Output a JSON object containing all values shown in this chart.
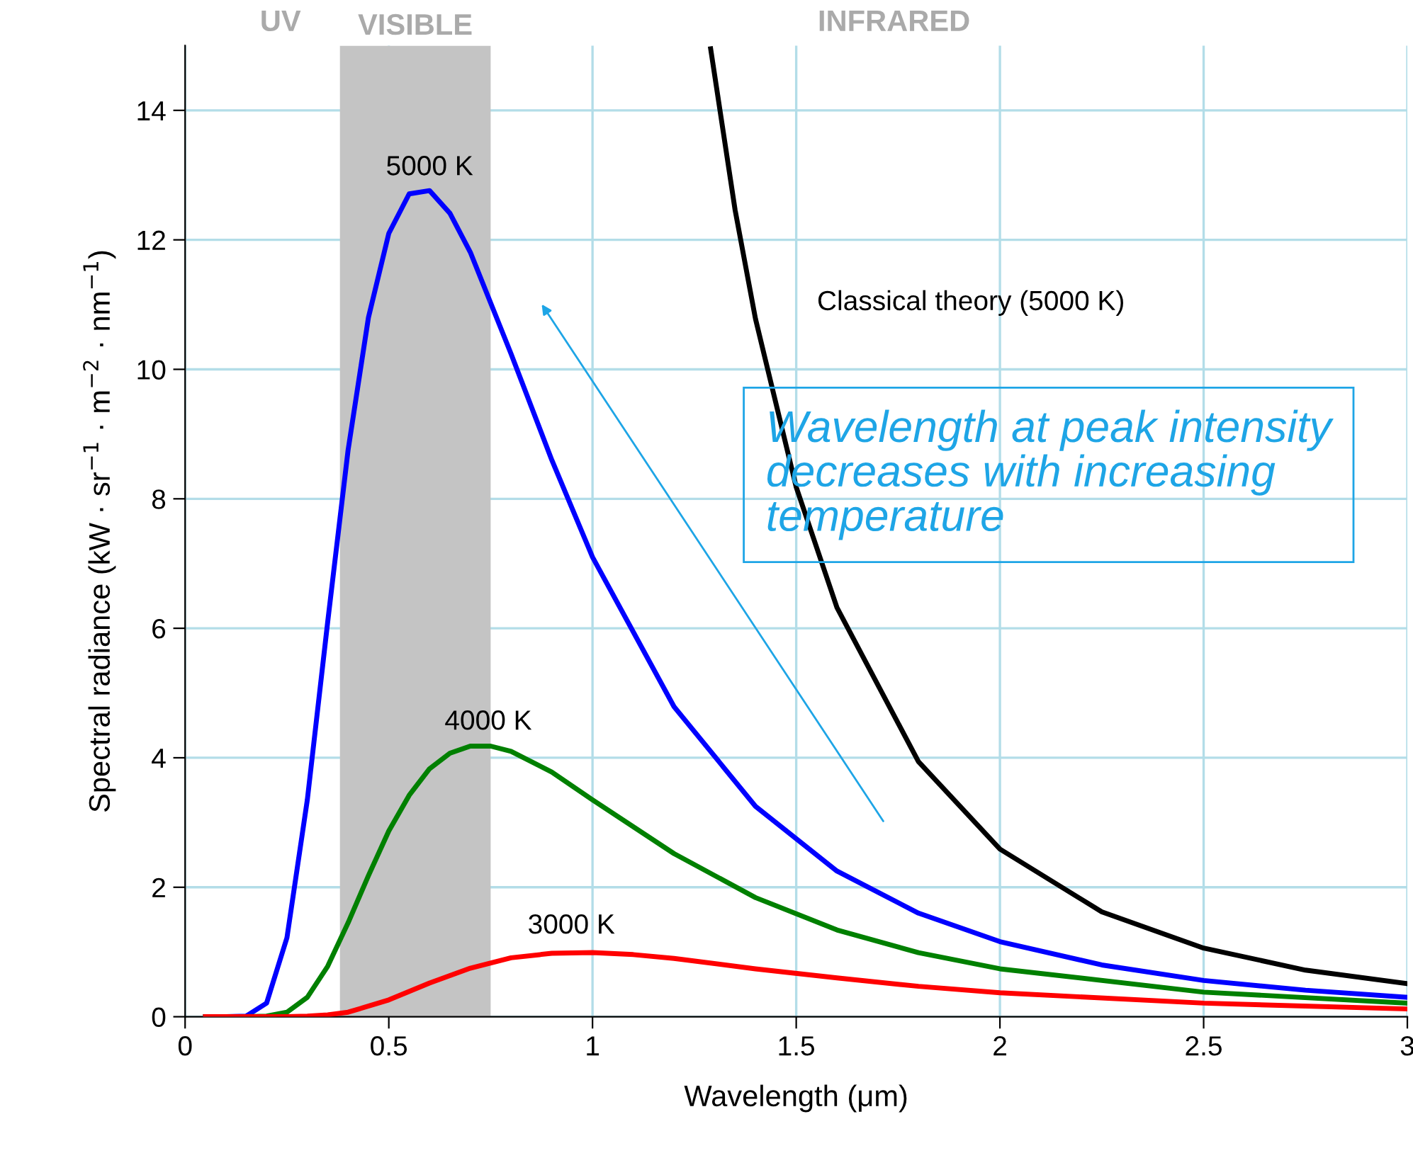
{
  "chart_data": {
    "type": "line",
    "xlabel": "Wavelength (μm)",
    "ylabel": "Spectral radiance (kW · sr$^{−1}$ · m$^{−2}$ · nm$^{−1}$)",
    "xlim": [
      0,
      3
    ],
    "ylim": [
      0,
      15
    ],
    "xticks": [
      0,
      0.5,
      1,
      1.5,
      2,
      2.5,
      3
    ],
    "yticks": [
      0,
      2,
      4,
      6,
      8,
      10,
      12,
      14
    ],
    "grid": true,
    "line_style": "solid",
    "series": [
      {
        "color": "#0000ff",
        "x": [
          0.05,
          0.1,
          0.15,
          0.2,
          0.25,
          0.3,
          0.35,
          0.4,
          0.45,
          0.5,
          0.55,
          0.6,
          0.65,
          0.7,
          0.8,
          0.9,
          1.0,
          1.2,
          1.4,
          1.6,
          1.8,
          2.0,
          2.25,
          2.5,
          2.75,
          3.0
        ],
        "values": [
          0,
          0,
          0.01,
          0.21,
          1.22,
          3.35,
          6.1,
          8.75,
          10.8,
          12.1,
          12.71,
          12.76,
          12.41,
          11.81,
          10.24,
          8.6,
          7.1,
          4.79,
          3.25,
          2.25,
          1.6,
          1.16,
          0.8,
          0.56,
          0.41,
          0.3
        ]
      },
      {
        "color": "#008000",
        "x": [
          0.05,
          0.1,
          0.15,
          0.2,
          0.25,
          0.3,
          0.35,
          0.4,
          0.45,
          0.5,
          0.55,
          0.6,
          0.65,
          0.7,
          0.75,
          0.8,
          0.9,
          1.0,
          1.2,
          1.4,
          1.6,
          1.8,
          2.0,
          2.5,
          3.0
        ],
        "values": [
          0,
          0,
          0,
          0.01,
          0.07,
          0.3,
          0.78,
          1.45,
          2.18,
          2.87,
          3.42,
          3.83,
          4.07,
          4.18,
          4.18,
          4.1,
          3.78,
          3.35,
          2.52,
          1.84,
          1.34,
          0.99,
          0.74,
          0.38,
          0.21
        ]
      },
      {
        "color": "#ff0000",
        "x": [
          0.05,
          0.1,
          0.2,
          0.25,
          0.3,
          0.35,
          0.4,
          0.5,
          0.6,
          0.7,
          0.8,
          0.9,
          1.0,
          1.1,
          1.2,
          1.4,
          1.6,
          1.8,
          2.0,
          2.5,
          3.0
        ],
        "values": [
          0,
          0,
          0,
          0,
          0.01,
          0.03,
          0.07,
          0.26,
          0.52,
          0.75,
          0.91,
          0.98,
          0.99,
          0.96,
          0.9,
          0.74,
          0.6,
          0.47,
          0.37,
          0.21,
          0.12
        ]
      },
      {
        "color": "#000000",
        "x": [
          1.29,
          1.35,
          1.4,
          1.5,
          1.6,
          1.8,
          2.0,
          2.25,
          2.5,
          2.75,
          3.0
        ],
        "values": [
          14.95,
          12.46,
          10.78,
          8.18,
          6.32,
          3.94,
          2.59,
          1.62,
          1.06,
          0.72,
          0.51
        ]
      }
    ],
    "bands": [
      {
        "axis": "x",
        "from": 0.38,
        "to": 0.75,
        "color": "#c4c4c4",
        "label": "VISIBLE"
      }
    ],
    "annotations": [
      "UV",
      "INFRARED",
      "5000 K",
      "4000 K",
      "3000 K",
      "Classical theory (5000 K)",
      "Wavelength at peak intensity decreases with increasing temperature"
    ]
  }
}
